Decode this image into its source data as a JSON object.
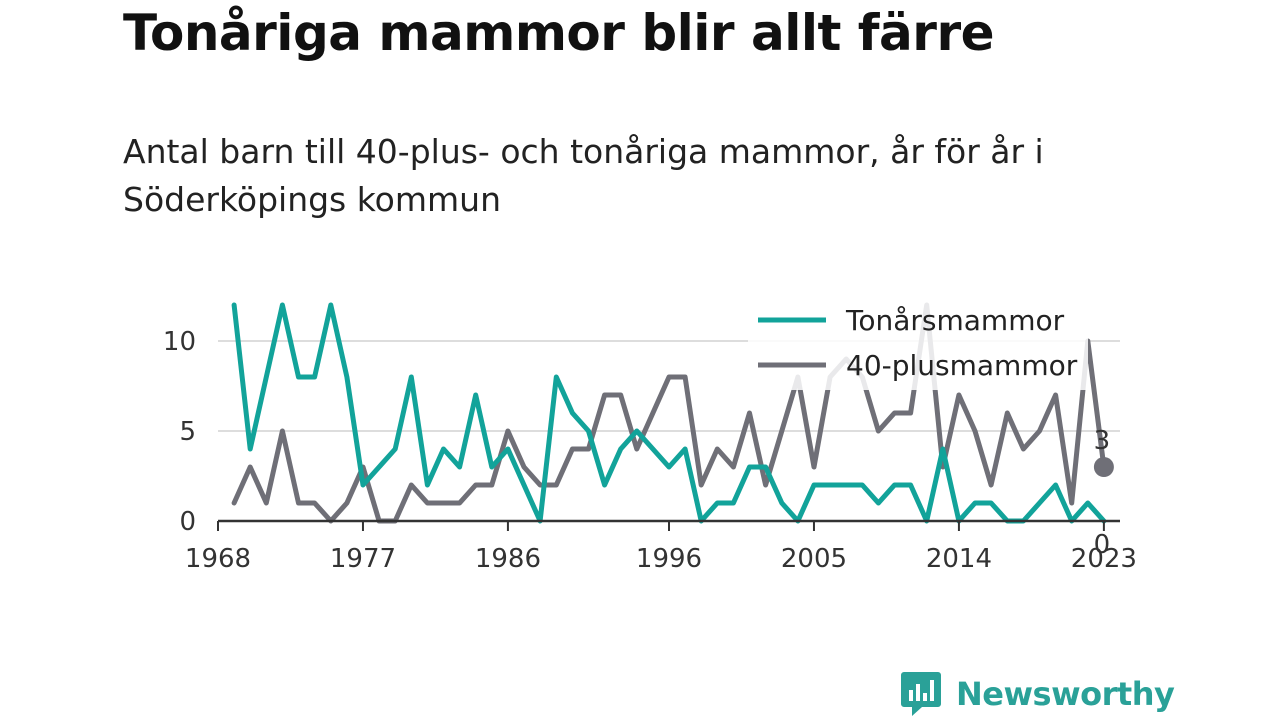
{
  "title": "Tonåriga mammor blir allt färre",
  "subtitle": "Antal barn till 40-plus- och tonåriga mammor, år för år i Söderköpings kommun",
  "logo": {
    "text": "Newsworthy",
    "icon": "bar-chart-speech-bubble-icon"
  },
  "colors": {
    "teen": "#12a39a",
    "forty": "#6f6f77",
    "grid": "#dddddd",
    "axis": "#333333"
  },
  "chart_data": {
    "type": "line",
    "x": [
      1969,
      1970,
      1971,
      1972,
      1973,
      1974,
      1975,
      1976,
      1977,
      1978,
      1979,
      1980,
      1981,
      1982,
      1983,
      1984,
      1985,
      1986,
      1987,
      1988,
      1989,
      1990,
      1991,
      1992,
      1993,
      1994,
      1995,
      1996,
      1997,
      1998,
      1999,
      2000,
      2001,
      2002,
      2003,
      2004,
      2005,
      2006,
      2007,
      2008,
      2009,
      2010,
      2011,
      2012,
      2013,
      2014,
      2015,
      2016,
      2017,
      2018,
      2019,
      2020,
      2021,
      2022,
      2023
    ],
    "series": [
      {
        "name": "Tonårsmammor",
        "color": "#12a39a",
        "values": [
          12,
          4,
          8,
          12,
          8,
          8,
          12,
          8,
          2,
          3,
          4,
          8,
          2,
          4,
          3,
          7,
          3,
          4,
          2,
          0,
          8,
          6,
          5,
          2,
          4,
          5,
          4,
          3,
          4,
          0,
          1,
          1,
          3,
          3,
          1,
          0,
          2,
          2,
          2,
          2,
          1,
          2,
          2,
          0,
          4,
          0,
          1,
          1,
          0,
          0,
          1,
          2,
          0,
          1,
          0
        ]
      },
      {
        "name": "40-plusmammor",
        "color": "#6f6f77",
        "values": [
          1,
          3,
          1,
          5,
          1,
          1,
          0,
          1,
          3,
          0,
          0,
          2,
          1,
          1,
          1,
          2,
          2,
          5,
          3,
          2,
          2,
          4,
          4,
          7,
          7,
          4,
          6,
          8,
          8,
          2,
          4,
          3,
          6,
          2,
          5,
          8,
          3,
          8,
          9,
          8,
          5,
          6,
          6,
          12,
          3,
          7,
          5,
          2,
          6,
          4,
          5,
          7,
          1,
          10,
          3
        ]
      }
    ],
    "x_ticks": [
      "1968",
      "1977",
      "1986",
      "1996",
      "2005",
      "2014",
      "2023"
    ],
    "y_ticks": [
      "0",
      "5",
      "10"
    ],
    "ylim": [
      0,
      12
    ],
    "xlim": [
      1968,
      2024
    ],
    "end_labels": [
      "3",
      "0"
    ],
    "legend": {
      "position": "top-right",
      "entries": [
        "Tonårsmammor",
        "40-plusmammor"
      ]
    },
    "grid": "horizontal"
  }
}
